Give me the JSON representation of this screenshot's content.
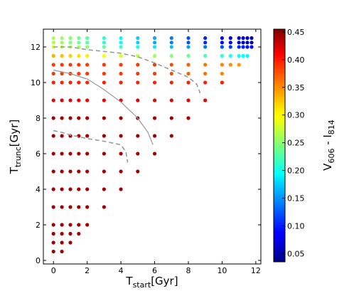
{
  "chart_data": {
    "type": "scatter",
    "xlabel": {
      "main": "T",
      "sub": "start",
      "rest": "[Gyr]"
    },
    "ylabel": {
      "main": "T",
      "sub": "trunc",
      "rest": "[Gyr]"
    },
    "colorbar_label": {
      "a": "V",
      "a_sub": "606",
      "mid": " - I",
      "b_sub": "814"
    },
    "xlim": [
      -0.6,
      12.3
    ],
    "ylim": [
      -0.2,
      13.0
    ],
    "xticks": [
      "0",
      "2",
      "4",
      "6",
      "8",
      "10",
      "12"
    ],
    "yticks": [
      "0",
      "2",
      "4",
      "6",
      "8",
      "10",
      "12"
    ],
    "clim": [
      0.035,
      0.455
    ],
    "cticks": [
      "0.05",
      "0.10",
      "0.15",
      "0.20",
      "0.25",
      "0.30",
      "0.35",
      "0.40",
      "0.45"
    ],
    "colormap": "jet",
    "grid": false,
    "x_grid": [
      0,
      0.5,
      1,
      1.5,
      2,
      3,
      4,
      5,
      6,
      7,
      8,
      9,
      10,
      10.5,
      11,
      11.25,
      11.5,
      11.75
    ],
    "y_grid": [
      0.5,
      1,
      1.5,
      2,
      3,
      4,
      5,
      6,
      7,
      8,
      9,
      10,
      10.5,
      11,
      11.5,
      12,
      12.25,
      12.5
    ],
    "color_rule": "color of each point tracks T_start and T_trunc: red (~0.45) for short truncation times, orange (~0.38) near 9-11 Gyr, yellow-green near 12-12.5 Gyr, cyan to blue (~0.05) for late-start, late-truncation models",
    "contours": [
      {
        "style": "dashed",
        "points": [
          [
            0,
            7.3
          ],
          [
            0.5,
            7.2
          ],
          [
            1,
            7.05
          ],
          [
            2,
            6.85
          ],
          [
            3,
            6.7
          ],
          [
            4,
            6.5
          ],
          [
            4.3,
            6.1
          ],
          [
            4.4,
            5.5
          ]
        ]
      },
      {
        "style": "solid",
        "points": [
          [
            0,
            10.7
          ],
          [
            1,
            10.5
          ],
          [
            2,
            10.2
          ],
          [
            3,
            9.6
          ],
          [
            4,
            8.9
          ],
          [
            5,
            8.0
          ],
          [
            5.6,
            7.2
          ],
          [
            5.9,
            6.5
          ]
        ]
      },
      {
        "style": "dashed",
        "points": [
          [
            0,
            12.0
          ],
          [
            1,
            12.0
          ],
          [
            2,
            11.85
          ],
          [
            3,
            11.75
          ],
          [
            4,
            11.65
          ],
          [
            5,
            11.45
          ],
          [
            6,
            11.1
          ],
          [
            7,
            10.7
          ],
          [
            8,
            10.3
          ],
          [
            8.5,
            9.9
          ],
          [
            8.7,
            9.4
          ]
        ]
      }
    ]
  }
}
